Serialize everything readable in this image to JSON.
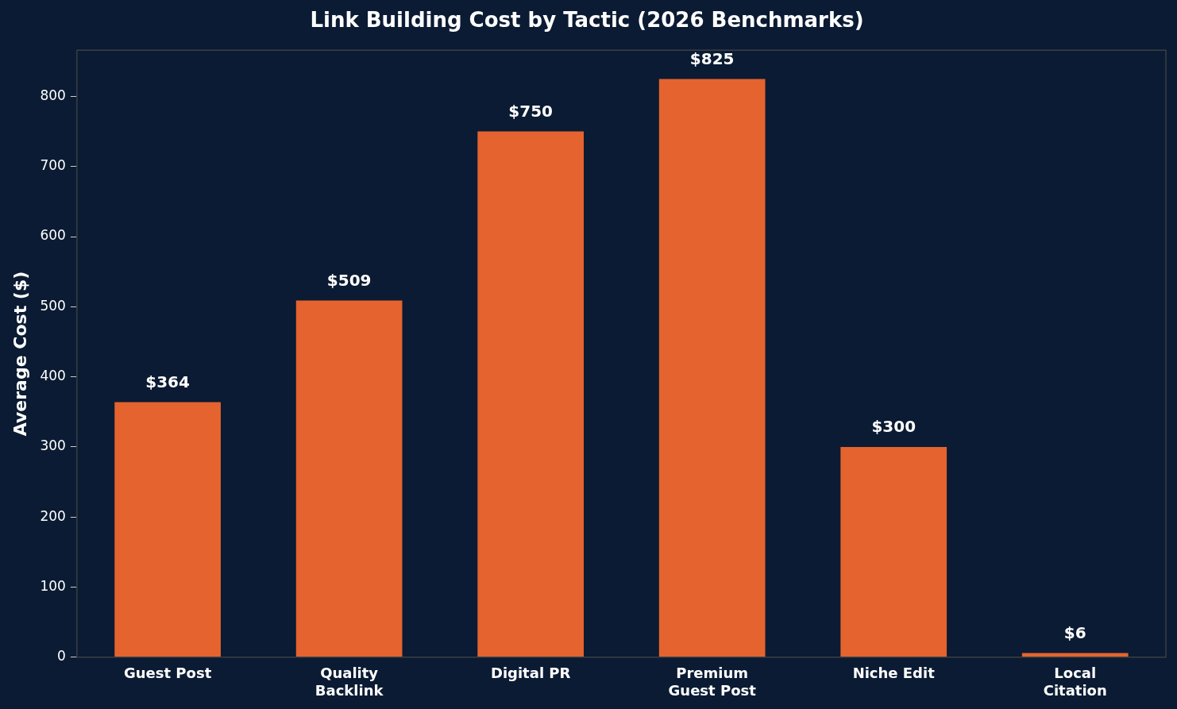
{
  "chart_data": {
    "type": "bar",
    "title": "Link Building Cost by Tactic (2026 Benchmarks)",
    "ylabel": "Average Cost ($)",
    "categories": [
      "Guest Post",
      "Quality\nBacklink",
      "Digital PR",
      "Premium\nGuest Post",
      "Niche Edit",
      "Local\nCitation"
    ],
    "values": [
      364,
      509,
      750,
      825,
      300,
      6
    ],
    "value_labels": [
      "$364",
      "$509",
      "$750",
      "$825",
      "$300",
      "$6"
    ],
    "color": "#e5632e",
    "ylim": [
      0,
      866
    ],
    "yticks": [
      0,
      100,
      200,
      300,
      400,
      500,
      600,
      700,
      800
    ],
    "grid": false,
    "legend": false
  }
}
